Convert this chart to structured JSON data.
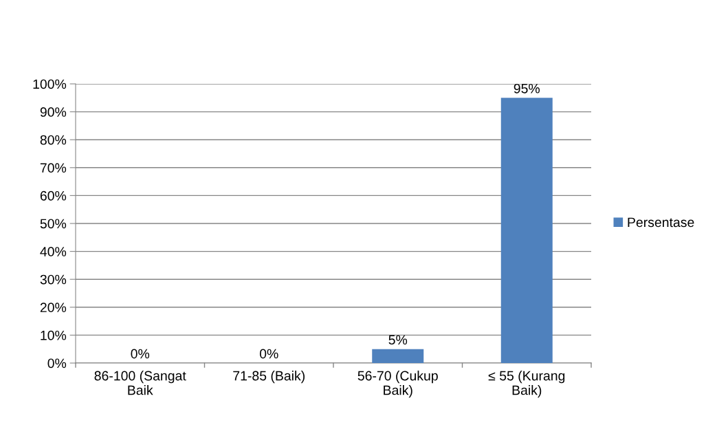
{
  "chart_data": {
    "type": "bar",
    "categories": [
      "86-100 (Sangat\nBaik",
      "71-85 (Baik)",
      "56-70 (Cukup\nBaik)",
      "≤ 55 (Kurang\nBaik)"
    ],
    "series": [
      {
        "name": "Persentase",
        "color": "#4f81bd",
        "values": [
          0,
          0,
          5,
          95
        ],
        "value_labels": [
          "0%",
          "0%",
          "5%",
          "95%"
        ]
      }
    ],
    "ylim": [
      0,
      100
    ],
    "yticks": [
      {
        "value": 0,
        "label": "0%"
      },
      {
        "value": 10,
        "label": "10%"
      },
      {
        "value": 20,
        "label": "20%"
      },
      {
        "value": 30,
        "label": "30%"
      },
      {
        "value": 40,
        "label": "40%"
      },
      {
        "value": 50,
        "label": "50%"
      },
      {
        "value": 60,
        "label": "60%"
      },
      {
        "value": 70,
        "label": "70%"
      },
      {
        "value": 80,
        "label": "80%"
      },
      {
        "value": 90,
        "label": "90%"
      },
      {
        "value": 100,
        "label": "100%"
      }
    ],
    "grid": "y",
    "legend": "right"
  }
}
